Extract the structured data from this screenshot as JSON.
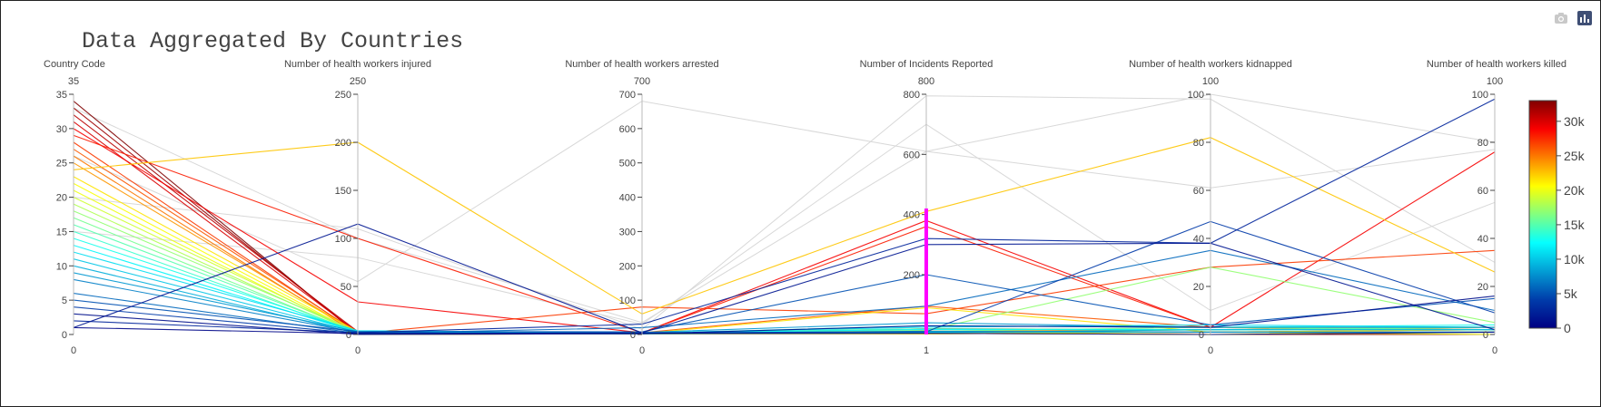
{
  "chart_data": {
    "type": "parallel_coordinates",
    "title": "Data Aggregated By Countries",
    "axes": [
      {
        "label": "Country Code",
        "range": [
          0,
          35
        ],
        "range_max_label": "35",
        "range_min_label": "0",
        "ticks": [
          0,
          5,
          10,
          15,
          20,
          25,
          30,
          35
        ]
      },
      {
        "label": "Number of health workers injured",
        "range": [
          0,
          250
        ],
        "range_max_label": "250",
        "range_min_label": "0",
        "ticks": [
          0,
          50,
          100,
          150,
          200,
          250
        ]
      },
      {
        "label": "Number of health workers arrested",
        "range": [
          0,
          700
        ],
        "range_max_label": "700",
        "range_min_label": "0",
        "ticks": [
          0,
          100,
          200,
          300,
          400,
          500,
          600,
          700
        ]
      },
      {
        "label": "Number of Incidents Reported",
        "range": [
          1,
          800
        ],
        "range_max_label": "800",
        "range_min_label": "1",
        "ticks": [
          200,
          400,
          600,
          800
        ],
        "constraint_range": [
          1,
          420
        ],
        "constraint_color": "#ff00ff"
      },
      {
        "label": "Number of health workers kidnapped",
        "range": [
          0,
          100
        ],
        "range_max_label": "100",
        "range_min_label": "0",
        "ticks": [
          0,
          20,
          40,
          60,
          80,
          100
        ]
      },
      {
        "label": "Number of health workers killed",
        "range": [
          0,
          100
        ],
        "range_max_label": "100",
        "range_min_label": "0",
        "ticks": [
          0,
          20,
          40,
          60,
          80,
          100
        ]
      }
    ],
    "colorscale": "jet",
    "color_range": [
      0,
      33000
    ],
    "colorbar_ticks": [
      {
        "value": 0,
        "label": "0"
      },
      {
        "value": 5000,
        "label": "5k"
      },
      {
        "value": 10000,
        "label": "10k"
      },
      {
        "value": 15000,
        "label": "15k"
      },
      {
        "value": 20000,
        "label": "20k"
      },
      {
        "value": 25000,
        "label": "25k"
      },
      {
        "value": 30000,
        "label": "30k"
      }
    ],
    "lines": [
      {
        "values": [
          34,
          0,
          2,
          5,
          0,
          0
        ],
        "color": 33000
      },
      {
        "values": [
          33,
          1,
          2,
          3,
          1,
          1
        ],
        "color": 32000
      },
      {
        "values": [
          32,
          3,
          3,
          20,
          2,
          3
        ],
        "color": 31000
      },
      {
        "values": [
          31,
          2,
          2,
          12,
          1,
          2
        ],
        "color": 30000
      },
      {
        "values": [
          30,
          34,
          5,
          380,
          3,
          76
        ],
        "color": 29000
      },
      {
        "values": [
          29,
          100,
          5,
          360,
          3,
          2
        ],
        "color": 28000
      },
      {
        "values": [
          28,
          1,
          80,
          70,
          28,
          35
        ],
        "color": 27000
      },
      {
        "values": [
          27,
          2,
          5,
          95,
          3,
          2
        ],
        "color": 26000
      },
      {
        "values": [
          26,
          0,
          3,
          8,
          1,
          1
        ],
        "color": 25000
      },
      {
        "values": [
          25,
          2,
          2,
          12,
          2,
          3
        ],
        "color": 24000
      },
      {
        "values": [
          24,
          200,
          60,
          410,
          82,
          26
        ],
        "color": 22500
      },
      {
        "values": [
          23,
          3,
          3,
          90,
          1,
          2
        ],
        "color": 21500
      },
      {
        "values": [
          22,
          1,
          2,
          5,
          0,
          1
        ],
        "color": 20500
      },
      {
        "values": [
          21,
          0,
          2,
          3,
          1,
          0
        ],
        "color": 20000
      },
      {
        "values": [
          20,
          2,
          3,
          8,
          1,
          1
        ],
        "color": 19000
      },
      {
        "values": [
          19,
          1,
          2,
          6,
          2,
          2
        ],
        "color": 18000
      },
      {
        "values": [
          18,
          3,
          4,
          15,
          28,
          5
        ],
        "color": 17000
      },
      {
        "values": [
          17,
          1,
          3,
          12,
          3,
          2
        ],
        "color": 16000
      },
      {
        "values": [
          16,
          2,
          5,
          20,
          2,
          3
        ],
        "color": 15000
      },
      {
        "values": [
          15,
          1,
          2,
          9,
          1,
          1
        ],
        "color": 14000
      },
      {
        "values": [
          14,
          3,
          3,
          30,
          3,
          4
        ],
        "color": 13000
      },
      {
        "values": [
          13,
          2,
          4,
          18,
          2,
          2
        ],
        "color": 12000
      },
      {
        "values": [
          12,
          4,
          5,
          25,
          4,
          3
        ],
        "color": 11000
      },
      {
        "values": [
          11,
          2,
          3,
          10,
          1,
          1
        ],
        "color": 10000
      },
      {
        "values": [
          10,
          1,
          2,
          7,
          2,
          2
        ],
        "color": 9000
      },
      {
        "values": [
          9,
          3,
          6,
          40,
          3,
          3
        ],
        "color": 8000
      },
      {
        "values": [
          8,
          2,
          3,
          12,
          1,
          1
        ],
        "color": 7000
      },
      {
        "values": [
          6,
          1,
          20,
          95,
          35,
          10
        ],
        "color": 6000
      },
      {
        "values": [
          5,
          3,
          8,
          200,
          4,
          15
        ],
        "color": 5000
      },
      {
        "values": [
          4,
          1,
          5,
          10,
          47,
          9
        ],
        "color": 4000
      },
      {
        "values": [
          2,
          2,
          30,
          320,
          38,
          98
        ],
        "color": 2500
      },
      {
        "values": [
          1,
          115,
          5,
          300,
          38,
          2
        ],
        "color": 1500
      },
      {
        "values": [
          3,
          0,
          2,
          30,
          3,
          16
        ],
        "color": 1000
      },
      {
        "values": [
          1,
          1,
          3,
          5,
          0,
          1
        ],
        "color": 500
      }
    ],
    "unselected_lines": [
      {
        "values": [
          33,
          100,
          35,
          610,
          100,
          80
        ]
      },
      {
        "values": [
          26,
          55,
          680,
          610,
          61,
          77
        ]
      },
      {
        "values": [
          20,
          110,
          15,
          795,
          98,
          30
        ]
      },
      {
        "values": [
          15,
          80,
          30,
          700,
          10,
          55
        ]
      }
    ]
  }
}
